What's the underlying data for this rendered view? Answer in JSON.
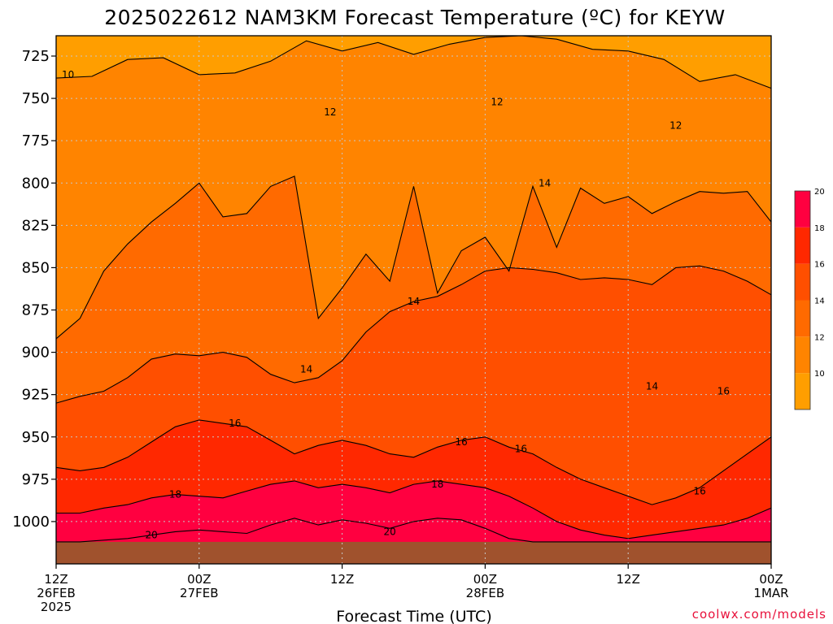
{
  "chart_data": {
    "type": "heatmap",
    "title": "2025022612 NAM3KM Forecast Temperature (ºC) for KEYW",
    "xlabel": "Forecast Time (UTC)",
    "ylabel": "",
    "credit": "coolwx.com/models",
    "x_ticks": [
      {
        "hour": 0,
        "line1": "12Z",
        "line2": "26FEB",
        "line3": "2025"
      },
      {
        "hour": 12,
        "line1": "00Z",
        "line2": "27FEB",
        "line3": ""
      },
      {
        "hour": 24,
        "line1": "12Z",
        "line2": "",
        "line3": ""
      },
      {
        "hour": 36,
        "line1": "00Z",
        "line2": "28FEB",
        "line3": ""
      },
      {
        "hour": 48,
        "line1": "12Z",
        "line2": "",
        "line3": ""
      },
      {
        "hour": 60,
        "line1": "00Z",
        "line2": "1MAR",
        "line3": ""
      }
    ],
    "x_range_hours": [
      0,
      60
    ],
    "y_ticks": [
      725,
      750,
      775,
      800,
      825,
      850,
      875,
      900,
      925,
      950,
      975,
      1000
    ],
    "y_range_hpa": [
      713,
      1025
    ],
    "y_axis_inverted": true,
    "grid": true,
    "colorbar": {
      "levels": [
        10,
        12,
        14,
        16,
        18,
        20
      ],
      "colors": [
        "#FF9E00",
        "#FF8400",
        "#FF6A00",
        "#FF4F00",
        "#FF2800",
        "#FF0040"
      ],
      "label_values": [
        10,
        12,
        14,
        16,
        18,
        20
      ]
    },
    "ground_color": "#A0522D",
    "surface_pressure_hpa": 1012,
    "contours": [
      {
        "level": 10,
        "label_x_hour": 1,
        "label_y_hpa": 736,
        "hours": [
          0,
          3,
          6,
          9,
          12,
          15,
          18,
          21,
          24,
          27,
          30,
          33,
          36,
          39,
          42,
          45,
          48,
          51,
          54,
          57,
          60
        ],
        "hpa": [
          738,
          737,
          727,
          726,
          736,
          735,
          728,
          716,
          722,
          717,
          724,
          718,
          714,
          713,
          715,
          721,
          722,
          727,
          740,
          736,
          744
        ]
      },
      {
        "level": 12,
        "label_x_hour": 23,
        "label_y_hpa": 758,
        "label2_x_hour": 37,
        "label2_y_hpa": 752,
        "label3_x_hour": 52,
        "label3_y_hpa": 766,
        "hours": [
          0,
          2,
          4,
          6,
          8,
          10,
          12,
          14,
          16,
          18,
          20,
          22,
          24,
          26,
          28,
          30,
          32,
          34,
          36,
          38,
          40,
          42,
          44,
          46,
          48,
          50,
          52,
          54,
          56,
          58,
          60
        ],
        "hpa": [
          892,
          880,
          852,
          836,
          823,
          812,
          800,
          820,
          818,
          802,
          796,
          880,
          862,
          842,
          858,
          802,
          865,
          840,
          832,
          852,
          802,
          838,
          803,
          812,
          808,
          818,
          811,
          805,
          806,
          805,
          823
        ]
      },
      {
        "level": 14,
        "label_x_hour": 21,
        "label_y_hpa": 910,
        "label2_x_hour": 30,
        "label2_y_hpa": 870,
        "label3_x_hour": 41,
        "label3_y_hpa": 800,
        "label4_x_hour": 50,
        "label4_y_hpa": 920,
        "hours": [
          0,
          2,
          4,
          6,
          8,
          10,
          12,
          14,
          16,
          18,
          20,
          22,
          24,
          26,
          28,
          30,
          32,
          34,
          36,
          38,
          40,
          42,
          44,
          46,
          48,
          50,
          52,
          54,
          56,
          58,
          60
        ],
        "hpa": [
          930,
          926,
          923,
          915,
          904,
          901,
          902,
          900,
          903,
          913,
          918,
          915,
          905,
          888,
          876,
          870,
          867,
          860,
          852,
          850,
          851,
          853,
          857,
          856,
          857,
          860,
          850,
          849,
          852,
          858,
          866
        ]
      },
      {
        "level": 16,
        "label_x_hour": 15,
        "label_y_hpa": 942,
        "label2_x_hour": 34,
        "label2_y_hpa": 953,
        "label3_x_hour": 39,
        "label3_y_hpa": 957,
        "label4_x_hour": 56,
        "label4_y_hpa": 923,
        "label5_x_hour": 54,
        "label5_y_hpa": 982,
        "hours": [
          0,
          2,
          4,
          6,
          8,
          10,
          12,
          14,
          16,
          18,
          20,
          22,
          24,
          26,
          28,
          30,
          32,
          34,
          36,
          38,
          40,
          42,
          44,
          46,
          48,
          50,
          52,
          54,
          56,
          58,
          60
        ],
        "hpa": [
          968,
          970,
          968,
          962,
          953,
          944,
          940,
          942,
          944,
          952,
          960,
          955,
          952,
          955,
          960,
          962,
          956,
          952,
          950,
          956,
          960,
          968,
          975,
          980,
          985,
          990,
          986,
          980,
          970,
          960,
          950
        ]
      },
      {
        "level": 18,
        "label_x_hour": 10,
        "label_y_hpa": 984,
        "label2_x_hour": 32,
        "label2_y_hpa": 978,
        "hours": [
          0,
          2,
          4,
          6,
          8,
          10,
          12,
          14,
          16,
          18,
          20,
          22,
          24,
          26,
          28,
          30,
          32,
          34,
          36,
          38,
          40,
          42,
          44,
          46,
          48,
          50,
          52,
          54,
          56,
          58,
          60
        ],
        "hpa": [
          995,
          995,
          992,
          990,
          986,
          984,
          985,
          986,
          982,
          978,
          976,
          980,
          978,
          980,
          983,
          978,
          976,
          978,
          980,
          985,
          992,
          1000,
          1005,
          1008,
          1010,
          1008,
          1006,
          1004,
          1002,
          998,
          992
        ]
      },
      {
        "level": 20,
        "label_x_hour": 8,
        "label_y_hpa": 1008,
        "label2_x_hour": 28,
        "label2_y_hpa": 1006,
        "hours": [
          0,
          2,
          4,
          6,
          8,
          10,
          12,
          14,
          16,
          18,
          20,
          22,
          24,
          26,
          28,
          30,
          32,
          34,
          36,
          38,
          40,
          42,
          44,
          46,
          48,
          50,
          52,
          54,
          56,
          58,
          60
        ],
        "hpa": [
          1012,
          1012,
          1011,
          1010,
          1008,
          1006,
          1005,
          1006,
          1007,
          1002,
          998,
          1002,
          999,
          1001,
          1004,
          1000,
          998,
          999,
          1004,
          1010,
          1012,
          1012,
          1012,
          1012,
          1012,
          1012,
          1012,
          1012,
          1012,
          1012,
          1012
        ]
      }
    ]
  }
}
